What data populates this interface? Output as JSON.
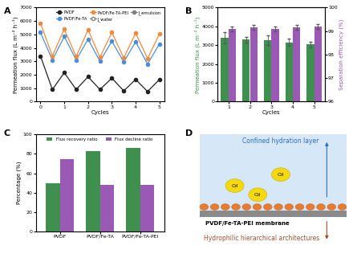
{
  "chart_data": [
    {
      "label": "A",
      "type": "line",
      "x": [
        0,
        0.5,
        1,
        1.5,
        2,
        2.5,
        3,
        3.5,
        4,
        4.5,
        5
      ],
      "x_label": "Cycles",
      "y_label": "Permeation flux (L m⁻² h⁻¹)",
      "xlim": [
        -0.2,
        5.2
      ],
      "xticks": [
        0,
        1,
        2,
        3,
        4,
        5
      ],
      "ylim": [
        0,
        7000
      ],
      "yticks": [
        0,
        1000,
        2000,
        3000,
        4000,
        5000,
        6000,
        7000
      ],
      "legend": "upper right",
      "marker_legend": [
        {
          "name": "J_water",
          "marker": "open"
        },
        {
          "name": "J_emulsion",
          "marker": "filled"
        }
      ],
      "series": [
        {
          "name": "PVDF",
          "color": "#222222",
          "marker": "o",
          "values": [
            3400,
            900,
            2150,
            900,
            1850,
            900,
            1750,
            800,
            1650,
            750,
            1650
          ]
        },
        {
          "name": "PVDF/Fe-TA",
          "color": "#4a90d9",
          "marker": "o",
          "values": [
            5150,
            3100,
            4850,
            3100,
            4650,
            3000,
            4500,
            2950,
            4450,
            2800,
            4300
          ]
        },
        {
          "name": "PVDF/Fe-TA-PEI",
          "color": "#f08a3c",
          "marker": "o",
          "values": [
            5850,
            3400,
            5400,
            3350,
            5350,
            3300,
            5150,
            3250,
            5100,
            3200,
            5050
          ]
        }
      ]
    },
    {
      "label": "B",
      "type": "bar",
      "x": [
        1,
        2,
        3,
        4,
        5
      ],
      "x_label": "Cycles",
      "y_label": "Permeation flux (L m⁻² h⁻¹)",
      "y2_label": "Separation efficiency (%)",
      "xlim": [
        0.5,
        5.5
      ],
      "xticks": [
        1,
        2,
        3,
        4,
        5
      ],
      "ylim": [
        0,
        5000
      ],
      "yticks": [
        0,
        1000,
        2000,
        3000,
        4000,
        5000
      ],
      "y2lim": [
        96,
        100
      ],
      "y2ticks": [
        96,
        97,
        98,
        99,
        100
      ],
      "series": [
        {
          "name": "Permeation flux",
          "color": "#3f8f4f",
          "values": [
            3400,
            3300,
            3280,
            3150,
            3050
          ],
          "errors": [
            300,
            150,
            250,
            200,
            150
          ]
        },
        {
          "name": "Separation efficiency",
          "color": "#9b59b6",
          "axis": "y2",
          "values": [
            99.1,
            99.15,
            99.1,
            99.15,
            99.2
          ],
          "errors": [
            0.1,
            0.1,
            0.1,
            0.1,
            0.1
          ]
        }
      ]
    },
    {
      "label": "C",
      "type": "bar",
      "categories": [
        "PVDF",
        "PVDF/Fe-TA",
        "PVDF/Fe-TA-PEI"
      ],
      "y_label": "Percentage (%)",
      "ylim": [
        0,
        100
      ],
      "yticks": [
        0,
        20,
        40,
        60,
        80,
        100
      ],
      "legend": "upper center",
      "series": [
        {
          "name": "Flux recovery ratio",
          "color": "#3f8f4f",
          "values": [
            50,
            83,
            86
          ]
        },
        {
          "name": "Flux decline ratio",
          "color": "#9b59b6",
          "values": [
            75,
            48,
            48
          ]
        }
      ]
    }
  ],
  "diagram": {
    "label": "D",
    "top_text": "Confined hydration layer",
    "oil_labels": [
      "Oil",
      "Oil",
      "Oil"
    ],
    "membrane_text": "PVDF/Fe-TA-PEI membrane",
    "bottom_text": "Hydrophilic hierarchical architectures"
  }
}
